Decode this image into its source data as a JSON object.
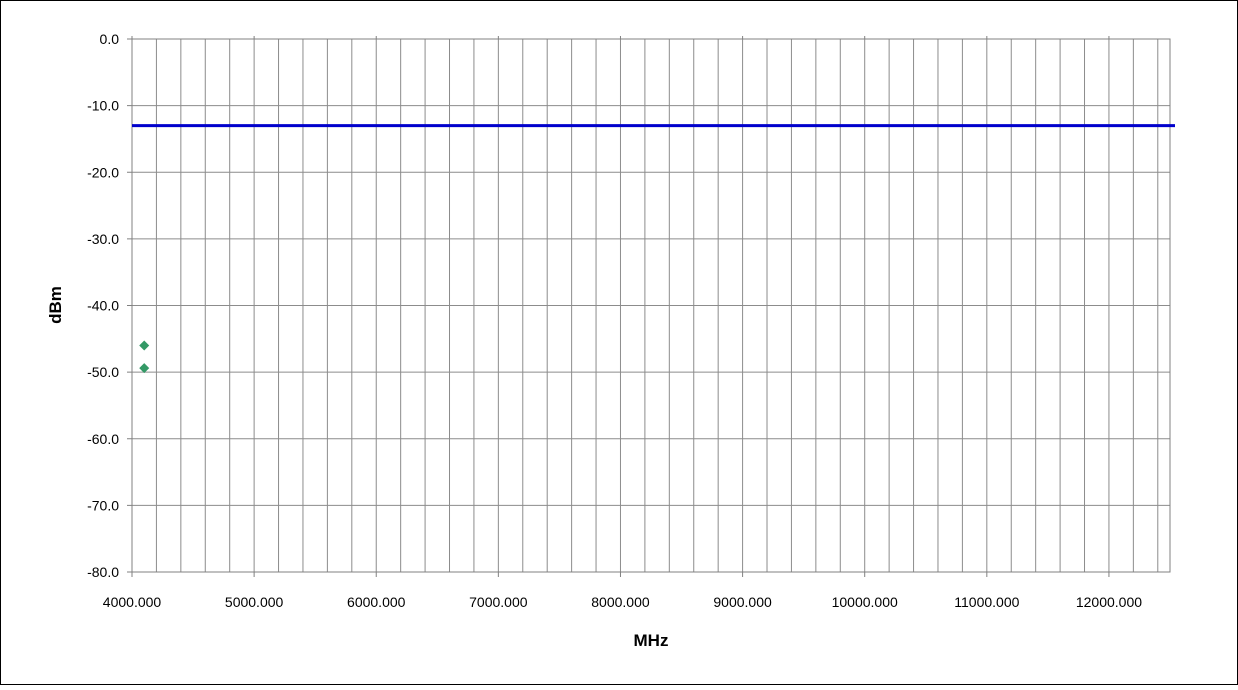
{
  "chart_data": {
    "type": "scatter",
    "xlabel": "MHz",
    "ylabel": "dBm",
    "xlim": [
      4000,
      12500
    ],
    "ylim": [
      -80,
      0
    ],
    "x_major_step": 1000,
    "x_minor_step": 200,
    "y_step": 10,
    "x_tick_labels": [
      "4000.000",
      "5000.000",
      "6000.000",
      "7000.000",
      "8000.000",
      "9000.000",
      "10000.000",
      "11000.000",
      "12000.000"
    ],
    "y_tick_labels": [
      "0.0",
      "-10.0",
      "-20.0",
      "-30.0",
      "-40.0",
      "-50.0",
      "-60.0",
      "-70.0",
      "-80.0"
    ],
    "grid": true,
    "series": [
      {
        "type": "scatter",
        "marker": "diamond",
        "color": "#339966",
        "points": [
          {
            "x": 4100,
            "y": -46.0
          },
          {
            "x": 4100,
            "y": -49.4
          }
        ]
      },
      {
        "type": "line",
        "color": "#0000cc",
        "points": [
          {
            "x": 4000,
            "y": -13.0
          },
          {
            "x": 12500,
            "y": -13.0
          }
        ]
      }
    ]
  }
}
